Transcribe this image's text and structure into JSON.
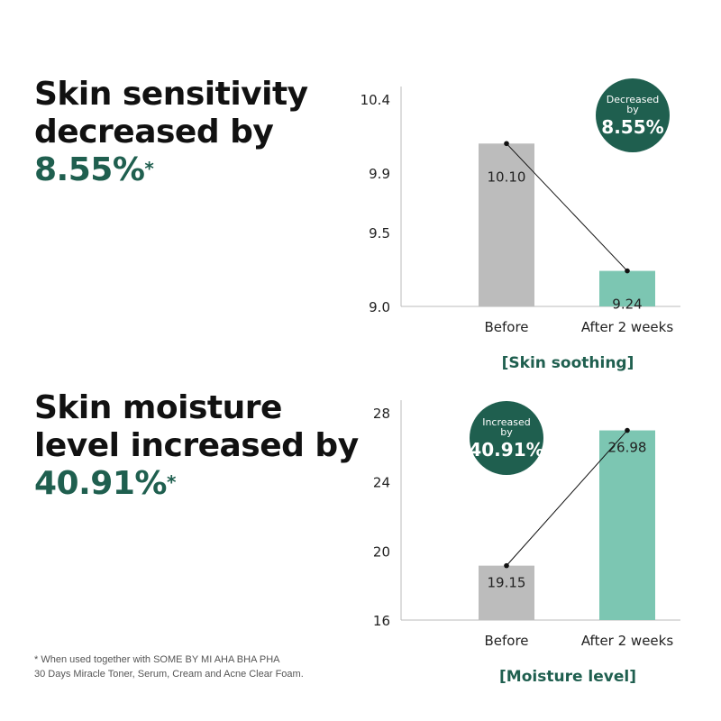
{
  "headlines": [
    {
      "line1": "Skin sensitivity",
      "line2": "decreased by",
      "percent": "8.55%",
      "asterisk": "*"
    },
    {
      "line1": "Skin moisture",
      "line2": "level increased by",
      "percent": "40.91%",
      "asterisk": "*"
    }
  ],
  "footnote": {
    "line1": "* When used together with SOME BY MI AHA BHA PHA",
    "line2": "30 Days Miracle Toner, Serum, Cream and Acne Clear Foam."
  },
  "colors": {
    "before": "#bcbcbc",
    "after": "#7cc6b2",
    "badge": "#1f5f4f",
    "accent_text": "#1f5f4f"
  },
  "chart_data": [
    {
      "type": "bar",
      "title": "[Skin soothing]",
      "categories": [
        "Before",
        "After 2 weeks"
      ],
      "values": [
        10.1,
        9.24
      ],
      "value_labels": [
        "10.10",
        "9.24"
      ],
      "yticks": [
        "10.4",
        "9.9",
        "9.5",
        "9.0"
      ],
      "ylim": [
        9.0,
        10.4
      ],
      "badge": {
        "line1": "Decreased",
        "line2": "by",
        "value": "8.55%"
      },
      "badge_position": "top-right",
      "connector_line": true
    },
    {
      "type": "bar",
      "title": "[Moisture level]",
      "categories": [
        "Before",
        "After 2 weeks"
      ],
      "values": [
        19.15,
        26.98
      ],
      "value_labels": [
        "19.15",
        "26.98"
      ],
      "yticks": [
        "28",
        "24",
        "20",
        "16"
      ],
      "ylim": [
        16,
        28
      ],
      "badge": {
        "line1": "Increased",
        "line2": "by",
        "value": "40.91%"
      },
      "badge_position": "top-left",
      "connector_line": true
    }
  ]
}
